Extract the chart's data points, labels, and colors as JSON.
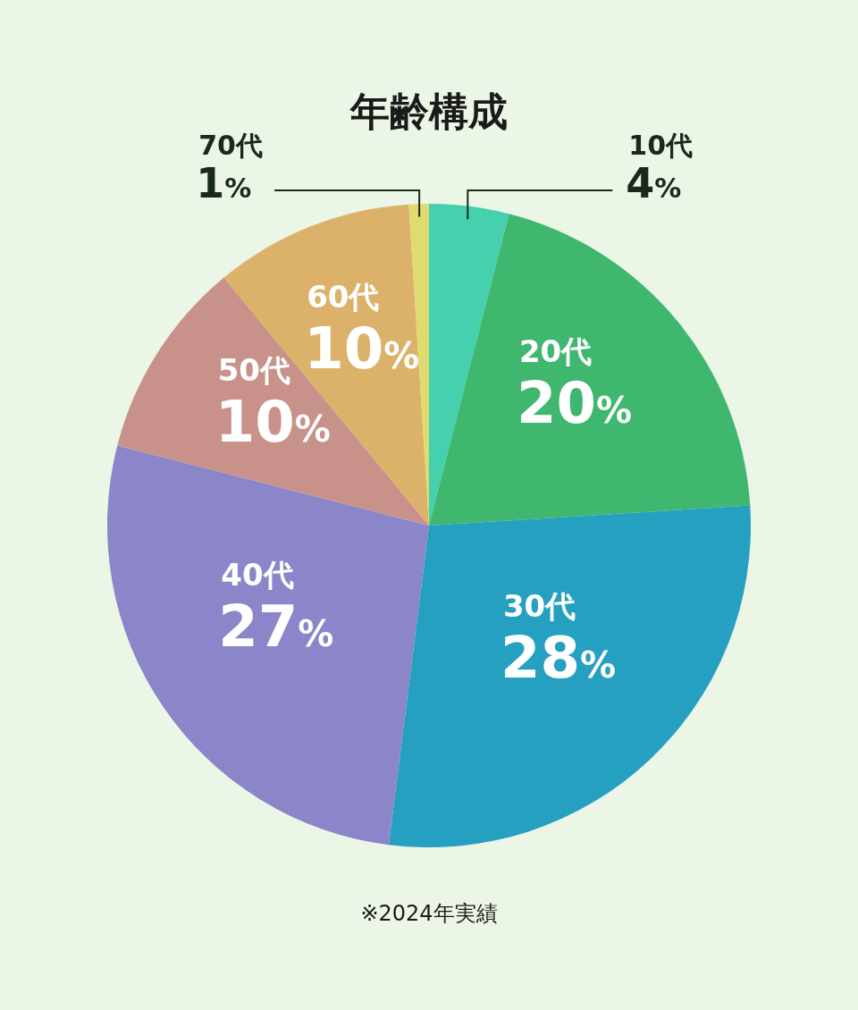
{
  "chart_data": {
    "type": "pie",
    "title": "年齢構成",
    "categories": [
      "10代",
      "20代",
      "30代",
      "40代",
      "50代",
      "60代",
      "70代"
    ],
    "values": [
      4,
      20,
      28,
      27,
      10,
      10,
      1
    ],
    "value_labels": [
      "4%",
      "20%",
      "28%",
      "27%",
      "10%",
      "10%",
      "1%"
    ],
    "colors": [
      "#45d1ae",
      "#3fb76f",
      "#26a0c0",
      "#8a86c9",
      "#c8928a",
      "#dcb26a",
      "#dfdb6e"
    ],
    "annotations": [
      "※2024年実績"
    ]
  }
}
